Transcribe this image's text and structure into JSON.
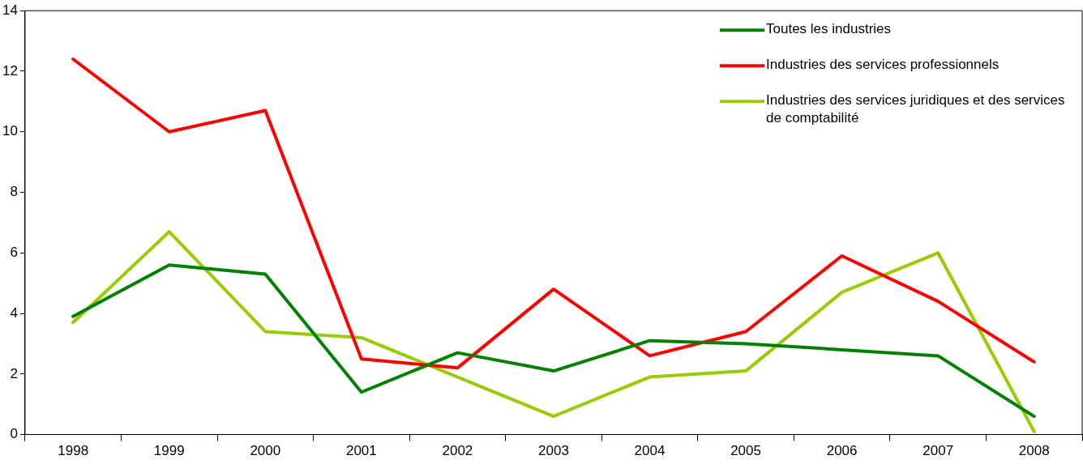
{
  "chart_data": {
    "type": "line",
    "categories": [
      "1998",
      "1999",
      "2000",
      "2001",
      "2002",
      "2003",
      "2004",
      "2005",
      "2006",
      "2007",
      "2008"
    ],
    "ylim": [
      0,
      14
    ],
    "yticks": [
      0,
      2,
      4,
      6,
      8,
      10,
      12,
      14
    ],
    "legend": "top right",
    "marker": "none",
    "line_style": "solid",
    "series": [
      {
        "name": "Toutes les industries",
        "color": "#008000",
        "values": [
          3.9,
          5.6,
          5.3,
          1.4,
          2.7,
          2.1,
          3.1,
          3.0,
          2.8,
          2.6,
          0.6
        ]
      },
      {
        "name": "Industries des services professionnels",
        "color": "#ff0000",
        "values": [
          12.4,
          10.0,
          10.7,
          2.5,
          2.2,
          4.8,
          2.6,
          3.4,
          5.9,
          4.4,
          2.4
        ]
      },
      {
        "name": "Industries des services juridiques et des services de comptabilité",
        "color": "#99cc00",
        "values": [
          3.7,
          6.7,
          3.4,
          3.2,
          1.9,
          0.6,
          1.9,
          2.1,
          4.7,
          6.0,
          0.1
        ]
      }
    ]
  }
}
